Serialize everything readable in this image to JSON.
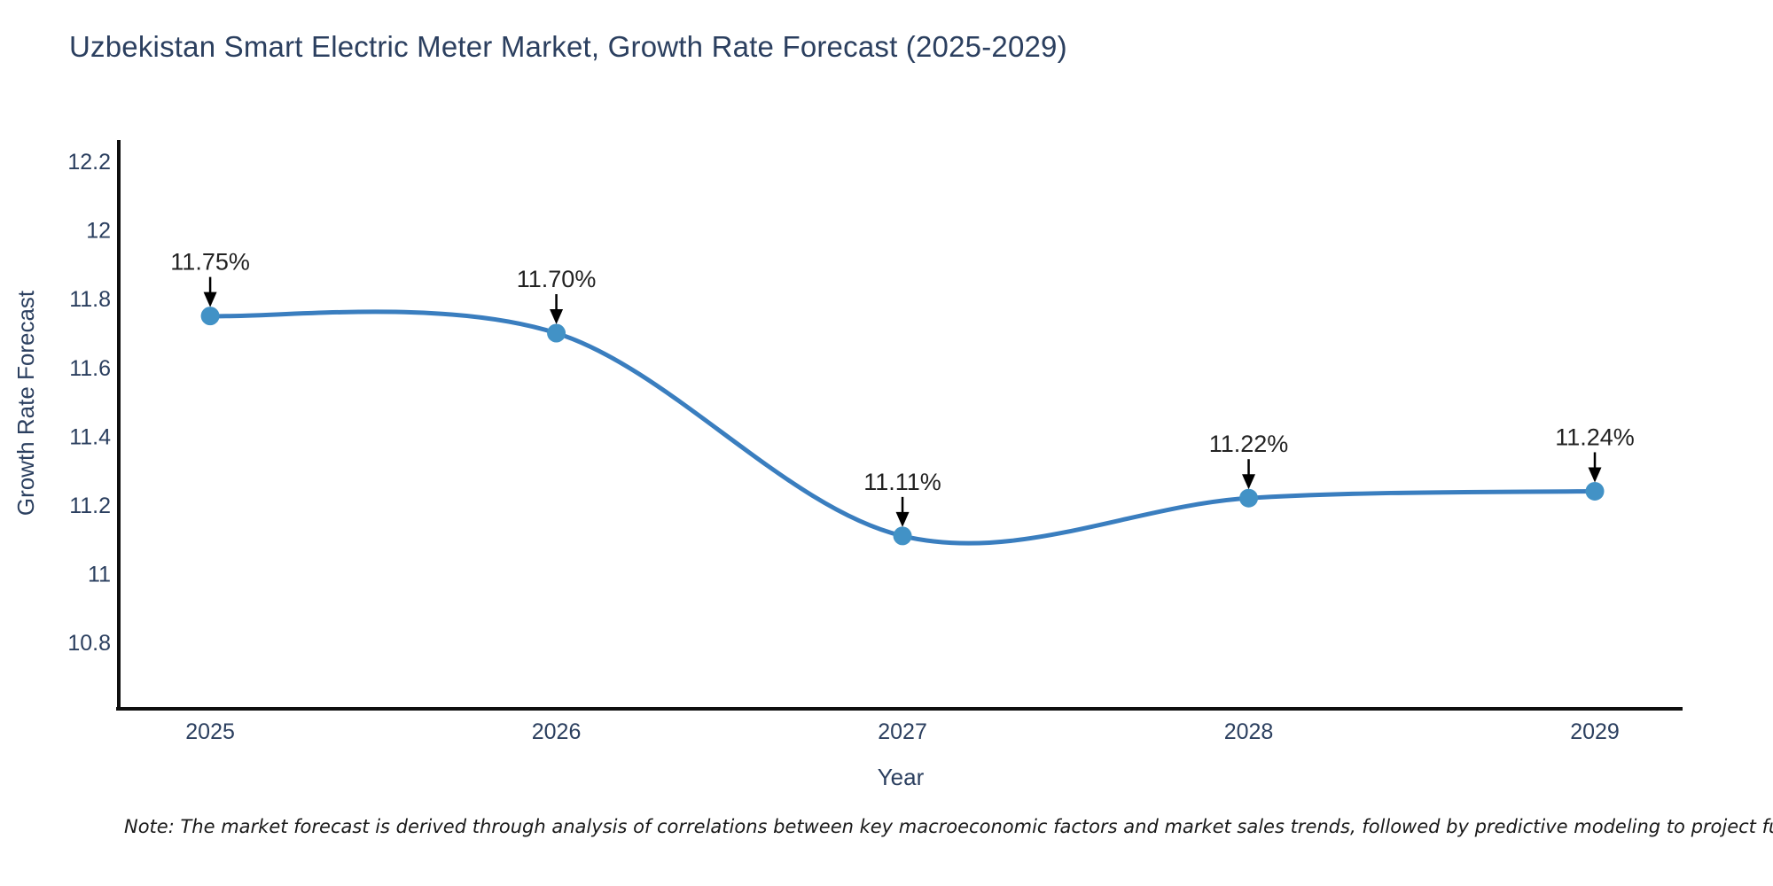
{
  "title": "Uzbekistan Smart Electric Meter Market, Growth Rate Forecast (2025-2029)",
  "note": "Note: The market forecast is derived through analysis of correlations between key macroeconomic factors and market sales trends, followed by predictive modeling to project future sales performance.",
  "chart_data": {
    "type": "line",
    "title": "Uzbekistan Smart Electric Meter Market, Growth Rate Forecast (2025-2029)",
    "xlabel": "Year",
    "ylabel": "Growth Rate Forecast",
    "x": [
      2025,
      2026,
      2027,
      2028,
      2029
    ],
    "series": [
      {
        "name": "Growth Rate Forecast",
        "values": [
          11.75,
          11.7,
          11.11,
          11.22,
          11.24
        ]
      }
    ],
    "point_labels": [
      "11.75%",
      "11.70%",
      "11.11%",
      "11.22%",
      "11.24%"
    ],
    "x_tick_labels": [
      "2025",
      "2026",
      "2027",
      "2028",
      "2029"
    ],
    "y_ticks": [
      12.2,
      12.0,
      11.8,
      11.6,
      11.4,
      11.2,
      11.0,
      10.8
    ],
    "y_tick_labels": [
      "12.2",
      "12",
      "11.8",
      "11.6",
      "11.4",
      "11.2",
      "11",
      "10.8"
    ],
    "xlim": [
      2024.736,
      2029.2535
    ],
    "ylim": [
      10.607,
      12.262
    ],
    "grid": false,
    "legend": "none",
    "line_shape": "spline",
    "colors": {
      "line": "#3a7ebf",
      "marker": "#4292c6",
      "axis": "#0f0f0f",
      "tick_text": "#2b3f5f",
      "axis_title_text": "#2b3f5f",
      "annotation_text": "#222222",
      "arrow": "#000000",
      "title_text": "#2b3f5f",
      "background": "#ffffff"
    }
  }
}
